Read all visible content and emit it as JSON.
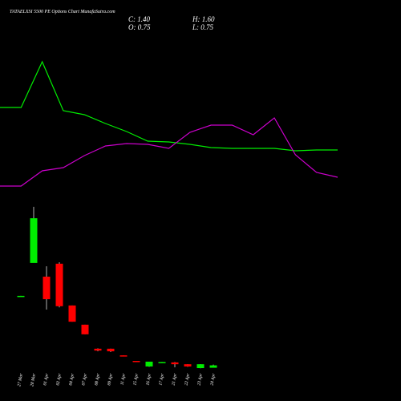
{
  "chart_data": [
    {
      "type": "line",
      "title": "TATAELXSI 5500  PE Options  Chart MunafaSutra.com",
      "ylim": [
        0,
        200
      ],
      "series": [
        {
          "color": "#00ee00",
          "values": [
            126,
            126,
            183,
            122,
            117,
            106,
            96,
            84,
            83,
            80,
            76,
            75,
            75,
            75,
            72,
            73,
            73
          ]
        },
        {
          "color": "#cc00cc",
          "values": [
            28,
            28,
            47,
            51,
            66,
            78,
            81,
            80,
            75,
            95,
            104,
            104,
            92,
            113,
            67,
            45,
            39
          ]
        }
      ]
    },
    {
      "type": "candlestick",
      "close_text": "C: 1.40",
      "high_text": "H: 1.60",
      "open_text": "O: 0.75",
      "low_text": "L: 0.75",
      "ylim": [
        0,
        46
      ],
      "up_color": "#00ee00",
      "down_color": "#ff0000",
      "categories": [
        "27 Mar",
        "28 Mar",
        "01 Apr",
        "02 Apr",
        "04 Apr",
        "07 Apr",
        "08 Apr",
        "09 Apr",
        "11 Apr",
        "15 Apr",
        "16 Apr",
        "17 Apr",
        "21 Apr",
        "22 Apr",
        "23 Apr",
        "24 Apr"
      ],
      "open": [
        20.1,
        29.1,
        25.4,
        28.9,
        17.6,
        12.4,
        5.9,
        5.9,
        4.1,
        2.6,
        1.1,
        2.1,
        2.2,
        1.7,
        0.65,
        0.75
      ],
      "high": [
        20.2,
        44.3,
        28.2,
        29.3,
        17.6,
        12.4,
        6.0,
        5.9,
        4.1,
        2.6,
        2.4,
        2.3,
        2.3,
        1.7,
        1.7,
        1.6
      ],
      "low": [
        20.1,
        29.3,
        16.5,
        17.1,
        13.2,
        9.8,
        5.2,
        5.0,
        4.0,
        2.5,
        1.0,
        2.1,
        0.9,
        1.0,
        0.6,
        0.75
      ],
      "close": [
        20.2,
        41.2,
        19.3,
        17.4,
        13.2,
        9.8,
        5.4,
        5.2,
        4.0,
        2.5,
        2.4,
        2.3,
        1.7,
        1.1,
        1.7,
        1.4
      ]
    }
  ]
}
